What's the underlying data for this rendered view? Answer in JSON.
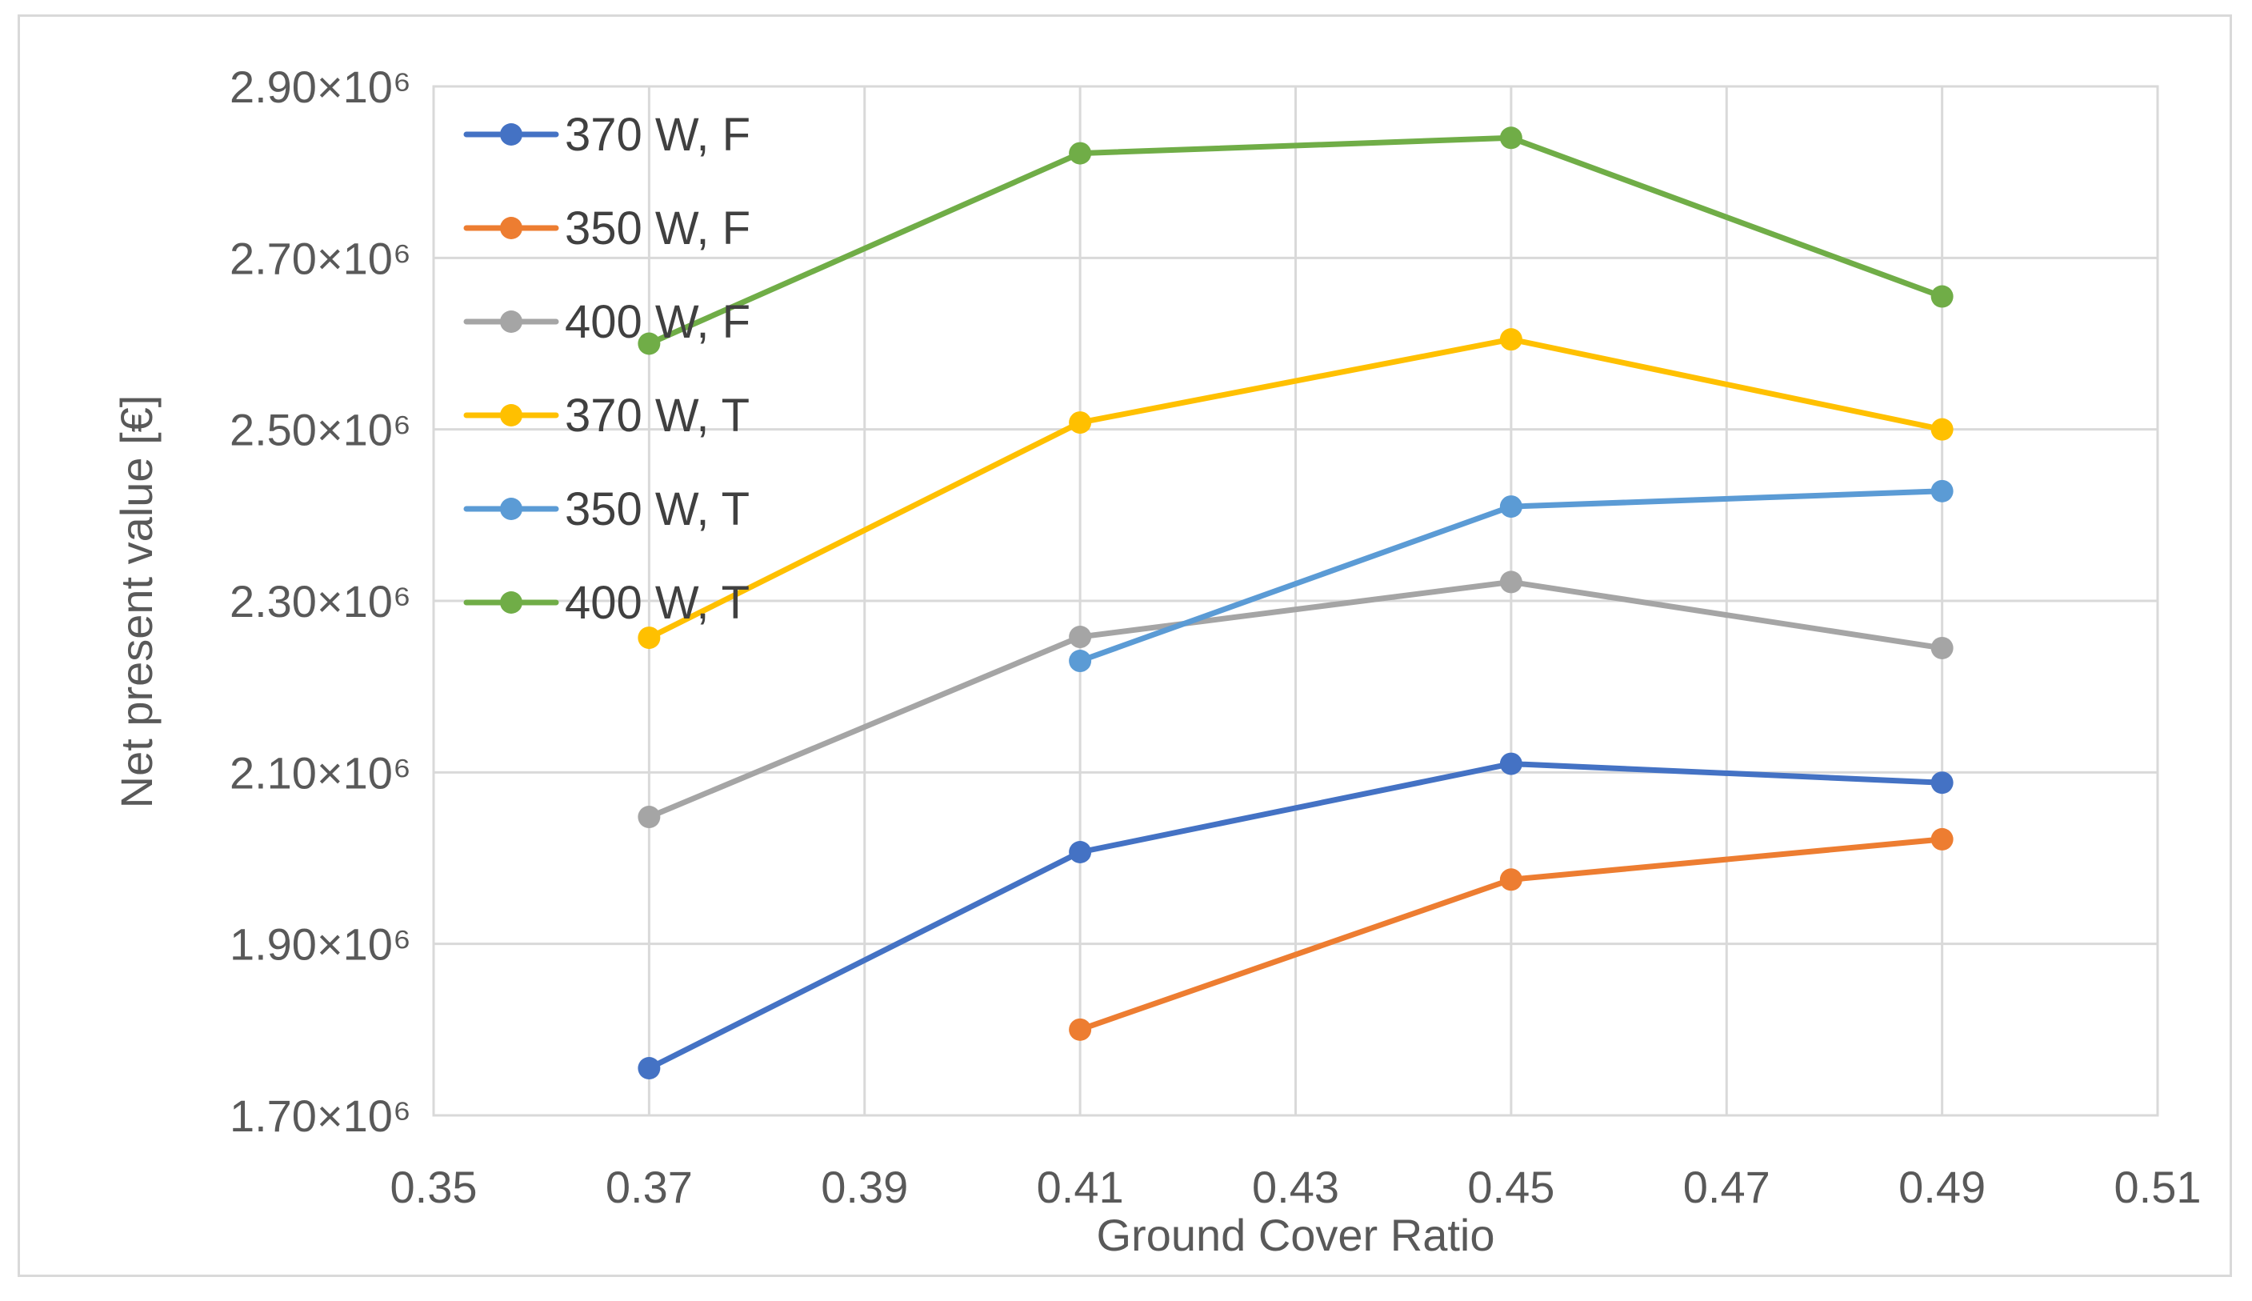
{
  "chart_data": {
    "type": "line",
    "title": "",
    "xlabel": "Ground Cover Ratio",
    "ylabel": "Net present value [€]",
    "xlim": [
      0.35,
      0.51
    ],
    "ylim": [
      1700000,
      2900000
    ],
    "x_ticks": [
      "0.35",
      "0.37",
      "0.39",
      "0.41",
      "0.43",
      "0.45",
      "0.47",
      "0.49",
      "0.51"
    ],
    "y_ticks": [
      "1.70×10⁶",
      "1.90×10⁶",
      "2.10×10⁶",
      "2.30×10⁶",
      "2.50×10⁶",
      "2.70×10⁶",
      "2.90×10⁶"
    ],
    "grid": true,
    "legend_position": "top-left",
    "series": [
      {
        "name": "370 W, F",
        "color": "#4472C4",
        "x": [
          0.37,
          0.41,
          0.45,
          0.49
        ],
        "values": [
          1755000,
          2007000,
          2110000,
          2088000
        ]
      },
      {
        "name": "350 W, F",
        "color": "#ED7D31",
        "x": [
          0.41,
          0.45,
          0.49
        ],
        "values": [
          1800000,
          1975000,
          2022000
        ]
      },
      {
        "name": "400 W, F",
        "color": "#A5A5A5",
        "x": [
          0.37,
          0.41,
          0.45,
          0.49
        ],
        "values": [
          2048000,
          2258000,
          2322000,
          2245000
        ]
      },
      {
        "name": "370 W, T",
        "color": "#FFC000",
        "x": [
          0.37,
          0.41,
          0.45,
          0.49
        ],
        "values": [
          2257000,
          2508000,
          2605000,
          2500000
        ]
      },
      {
        "name": "350 W, T",
        "color": "#5B9BD5",
        "x": [
          0.41,
          0.45,
          0.49
        ],
        "values": [
          2230000,
          2410000,
          2428000
        ]
      },
      {
        "name": "400 W, T",
        "color": "#70AD47",
        "x": [
          0.37,
          0.41,
          0.45,
          0.49
        ],
        "values": [
          2600000,
          2822000,
          2840000,
          2655000
        ]
      }
    ]
  }
}
